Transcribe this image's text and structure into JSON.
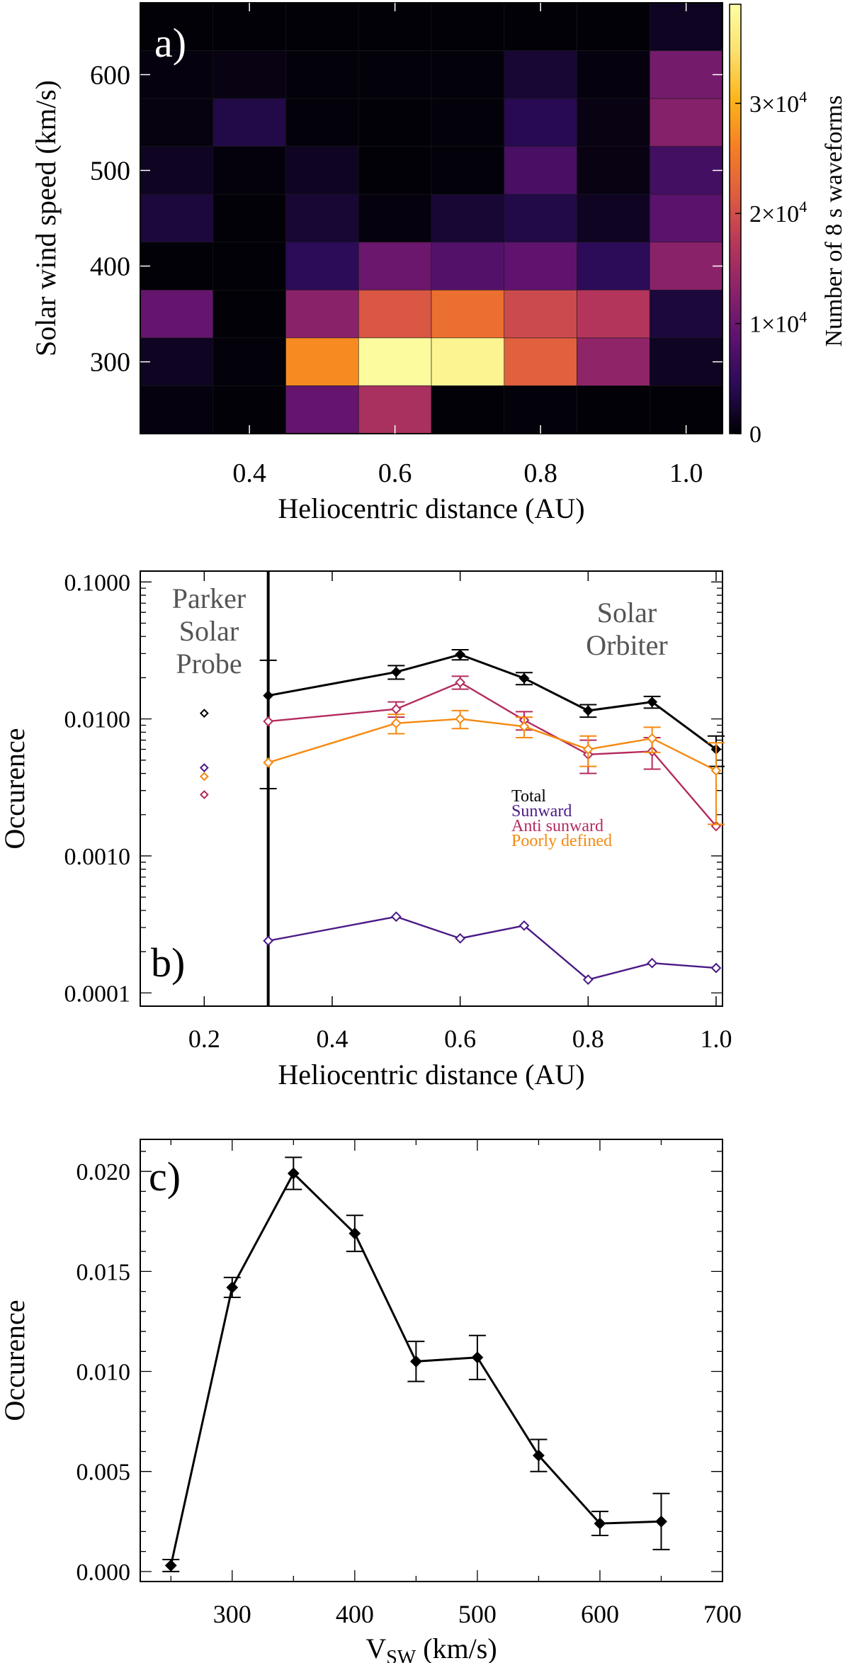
{
  "chart_data": [
    {
      "type": "heatmap",
      "panel_label": "a)",
      "xlabel": "Heliocentric distance (AU)",
      "ylabel": "Solar wind speed (km/s)",
      "x_ticks": [
        "0.4",
        "0.6",
        "0.8",
        "1.0"
      ],
      "x_tick_values": [
        0.4,
        0.6,
        0.8,
        1.0
      ],
      "y_ticks": [
        "300",
        "400",
        "500",
        "600"
      ],
      "y_tick_values": [
        300,
        400,
        500,
        600
      ],
      "xlim": [
        0.25,
        1.05
      ],
      "ylim": [
        225,
        675
      ],
      "x_bin_centers": [
        0.3,
        0.4,
        0.5,
        0.6,
        0.7,
        0.8,
        0.9,
        1.0
      ],
      "y_bin_centers": [
        250,
        300,
        350,
        400,
        450,
        500,
        550,
        600,
        650
      ],
      "cell_values_rows_top_to_bottom": [
        [
          200,
          200,
          200,
          200,
          200,
          200,
          200,
          1500
        ],
        [
          500,
          800,
          300,
          300,
          300,
          2500,
          500,
          11000
        ],
        [
          600,
          3500,
          300,
          200,
          300,
          4000,
          800,
          12500
        ],
        [
          1500,
          400,
          1500,
          200,
          300,
          7000,
          800,
          6500
        ],
        [
          3000,
          200,
          2500,
          500,
          2500,
          3500,
          1500,
          8500
        ],
        [
          200,
          200,
          4500,
          10000,
          8000,
          9000,
          4500,
          13000
        ],
        [
          9500,
          200,
          13000,
          21000,
          24000,
          19500,
          17000,
          3000
        ],
        [
          1500,
          300,
          27000,
          38500,
          37500,
          22000,
          13500,
          1500
        ],
        [
          500,
          200,
          9500,
          16000,
          200,
          300,
          200,
          200
        ]
      ],
      "colorbar": {
        "label": "Number of 8 s waveforms",
        "min": 0,
        "max": 39000,
        "tick_values": [
          0,
          10000,
          20000,
          30000
        ],
        "tick_labels": [
          {
            "base": "0",
            "exp": ""
          },
          {
            "base": "1×10",
            "exp": "4"
          },
          {
            "base": "2×10",
            "exp": "4"
          },
          {
            "base": "3×10",
            "exp": "4"
          }
        ],
        "colors": [
          "#000004",
          "#2a0b57",
          "#5c126e",
          "#8a226a",
          "#b7375a",
          "#df5d3f",
          "#f67e24",
          "#fcb519",
          "#fbe06e",
          "#fcffa4"
        ]
      }
    },
    {
      "type": "line",
      "panel_label": "b)",
      "xlabel": "Heliocentric distance (AU)",
      "ylabel": "Occurence",
      "yscale": "log",
      "xlim": [
        0.1,
        1.01
      ],
      "ylim": [
        8e-05,
        0.12
      ],
      "x_ticks": [
        "0.2",
        "0.4",
        "0.6",
        "0.8",
        "1.0"
      ],
      "x_tick_values": [
        0.2,
        0.4,
        0.6,
        0.8,
        1.0
      ],
      "y_ticks": [
        "0.0001",
        "0.0010",
        "0.0100",
        "0.1000"
      ],
      "y_tick_values": [
        0.0001,
        0.001,
        0.01,
        0.1
      ],
      "divider_x": 0.3,
      "region_labels": {
        "parker": [
          "Parker",
          "Solar",
          "Probe"
        ],
        "orbiter": [
          "Solar",
          "Orbiter"
        ]
      },
      "x": [
        0.3,
        0.5,
        0.6,
        0.7,
        0.8,
        0.9,
        1.0
      ],
      "series": [
        {
          "name": "Total",
          "color": "#000000",
          "values": [
            0.0148,
            0.022,
            0.0295,
            0.0198,
            0.0115,
            0.0133,
            0.006
          ],
          "errors": [
            0.012,
            0.0025,
            0.0025,
            0.002,
            0.0012,
            0.0013,
            0.0015
          ],
          "psp_value": 0.011
        },
        {
          "name": "Sunward",
          "color": "#4b1a86",
          "values": [
            0.00024,
            0.00036,
            0.00025,
            0.00031,
            0.000125,
            0.000165,
            0.000152
          ],
          "errors": [
            0,
            0,
            0,
            0,
            0,
            0,
            0
          ],
          "psp_value": 0.0044
        },
        {
          "name": "Anti sunward",
          "color": "#b42b5f",
          "values": [
            0.0096,
            0.0118,
            0.0185,
            0.0098,
            0.0055,
            0.0058,
            0.00165
          ],
          "errors": [
            0,
            0.0015,
            0.002,
            0.0015,
            0.0015,
            0.0015,
            0
          ],
          "psp_value": 0.0028
        },
        {
          "name": "Poorly defined",
          "color": "#f5890f",
          "values": [
            0.0048,
            0.0093,
            0.01,
            0.0088,
            0.006,
            0.0072,
            0.0042
          ],
          "errors": [
            0,
            0.0015,
            0.0015,
            0.0015,
            0.0015,
            0.0015,
            0.0025
          ],
          "psp_value": 0.0038
        }
      ]
    },
    {
      "type": "line",
      "panel_label": "c)",
      "xlabel_main": "V",
      "xlabel_sub": "SW",
      "xlabel_unit": " (km/s)",
      "ylabel": "Occurence",
      "xlim": [
        225,
        700
      ],
      "ylim": [
        -0.0005,
        0.0216
      ],
      "x_ticks": [
        "300",
        "400",
        "500",
        "600",
        "700"
      ],
      "x_tick_values": [
        300,
        400,
        500,
        600,
        700
      ],
      "y_ticks": [
        "0.000",
        "0.005",
        "0.010",
        "0.015",
        "0.020"
      ],
      "y_tick_values": [
        0,
        0.005,
        0.01,
        0.015,
        0.02
      ],
      "x": [
        250,
        300,
        350,
        400,
        450,
        500,
        550,
        600,
        650
      ],
      "series": [
        {
          "name": "Occurence",
          "color": "#000000",
          "values": [
            0.0003,
            0.0142,
            0.0199,
            0.0169,
            0.0105,
            0.0107,
            0.0058,
            0.0024,
            0.0025
          ],
          "errors": [
            0.0003,
            0.0005,
            0.0008,
            0.0009,
            0.001,
            0.0011,
            0.0008,
            0.0006,
            0.0014
          ]
        }
      ]
    }
  ]
}
